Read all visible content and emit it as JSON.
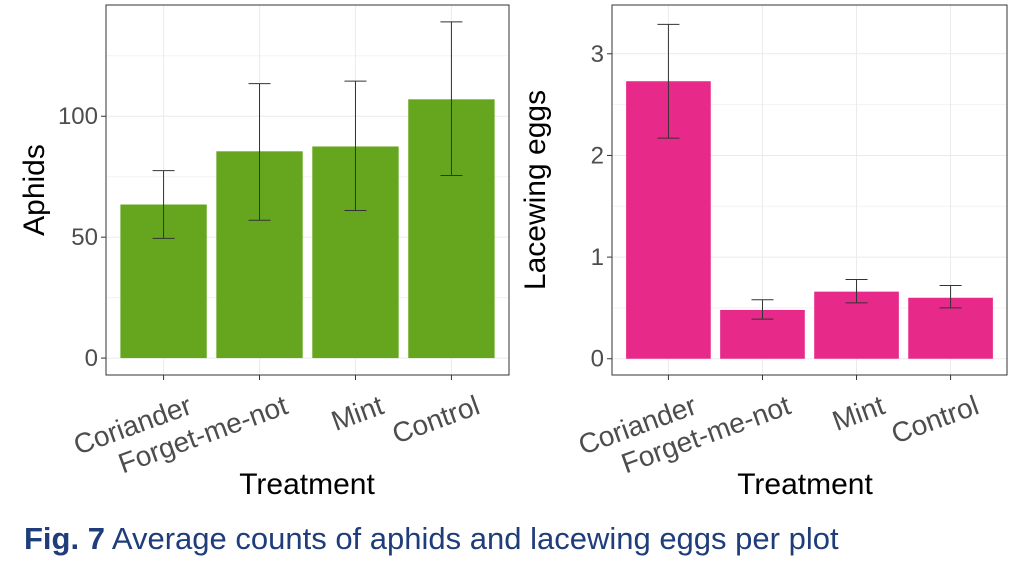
{
  "chart_data": [
    {
      "type": "bar",
      "ylabel": "Aphids",
      "xlabel": "Treatment",
      "categories": [
        "Coriander",
        "Forget-me-not",
        "Mint",
        "Control"
      ],
      "values": [
        63.5,
        85.5,
        87.5,
        107
      ],
      "error_low": [
        49.5,
        57,
        61,
        75.5
      ],
      "error_high": [
        77.5,
        113.5,
        114.5,
        139
      ],
      "yticks": [
        0,
        50,
        100
      ],
      "ylim": [
        -7,
        146
      ],
      "bar_color": "#66a61e",
      "grid": true
    },
    {
      "type": "bar",
      "ylabel": "Lacewing eggs",
      "xlabel": "Treatment",
      "categories": [
        "Coriander",
        "Forget-me-not",
        "Mint",
        "Control"
      ],
      "values": [
        2.73,
        0.48,
        0.66,
        0.6
      ],
      "error_low": [
        2.17,
        0.39,
        0.55,
        0.5
      ],
      "error_high": [
        3.29,
        0.58,
        0.78,
        0.72
      ],
      "yticks": [
        0,
        1,
        2,
        3
      ],
      "ylim": [
        -0.16,
        3.48
      ],
      "bar_color": "#e7298a",
      "grid": true
    }
  ],
  "caption": {
    "fig_number": "Fig. 7",
    "text": " Average counts of aphids and lacewing eggs per plot",
    "color": "#1f3d7a"
  }
}
